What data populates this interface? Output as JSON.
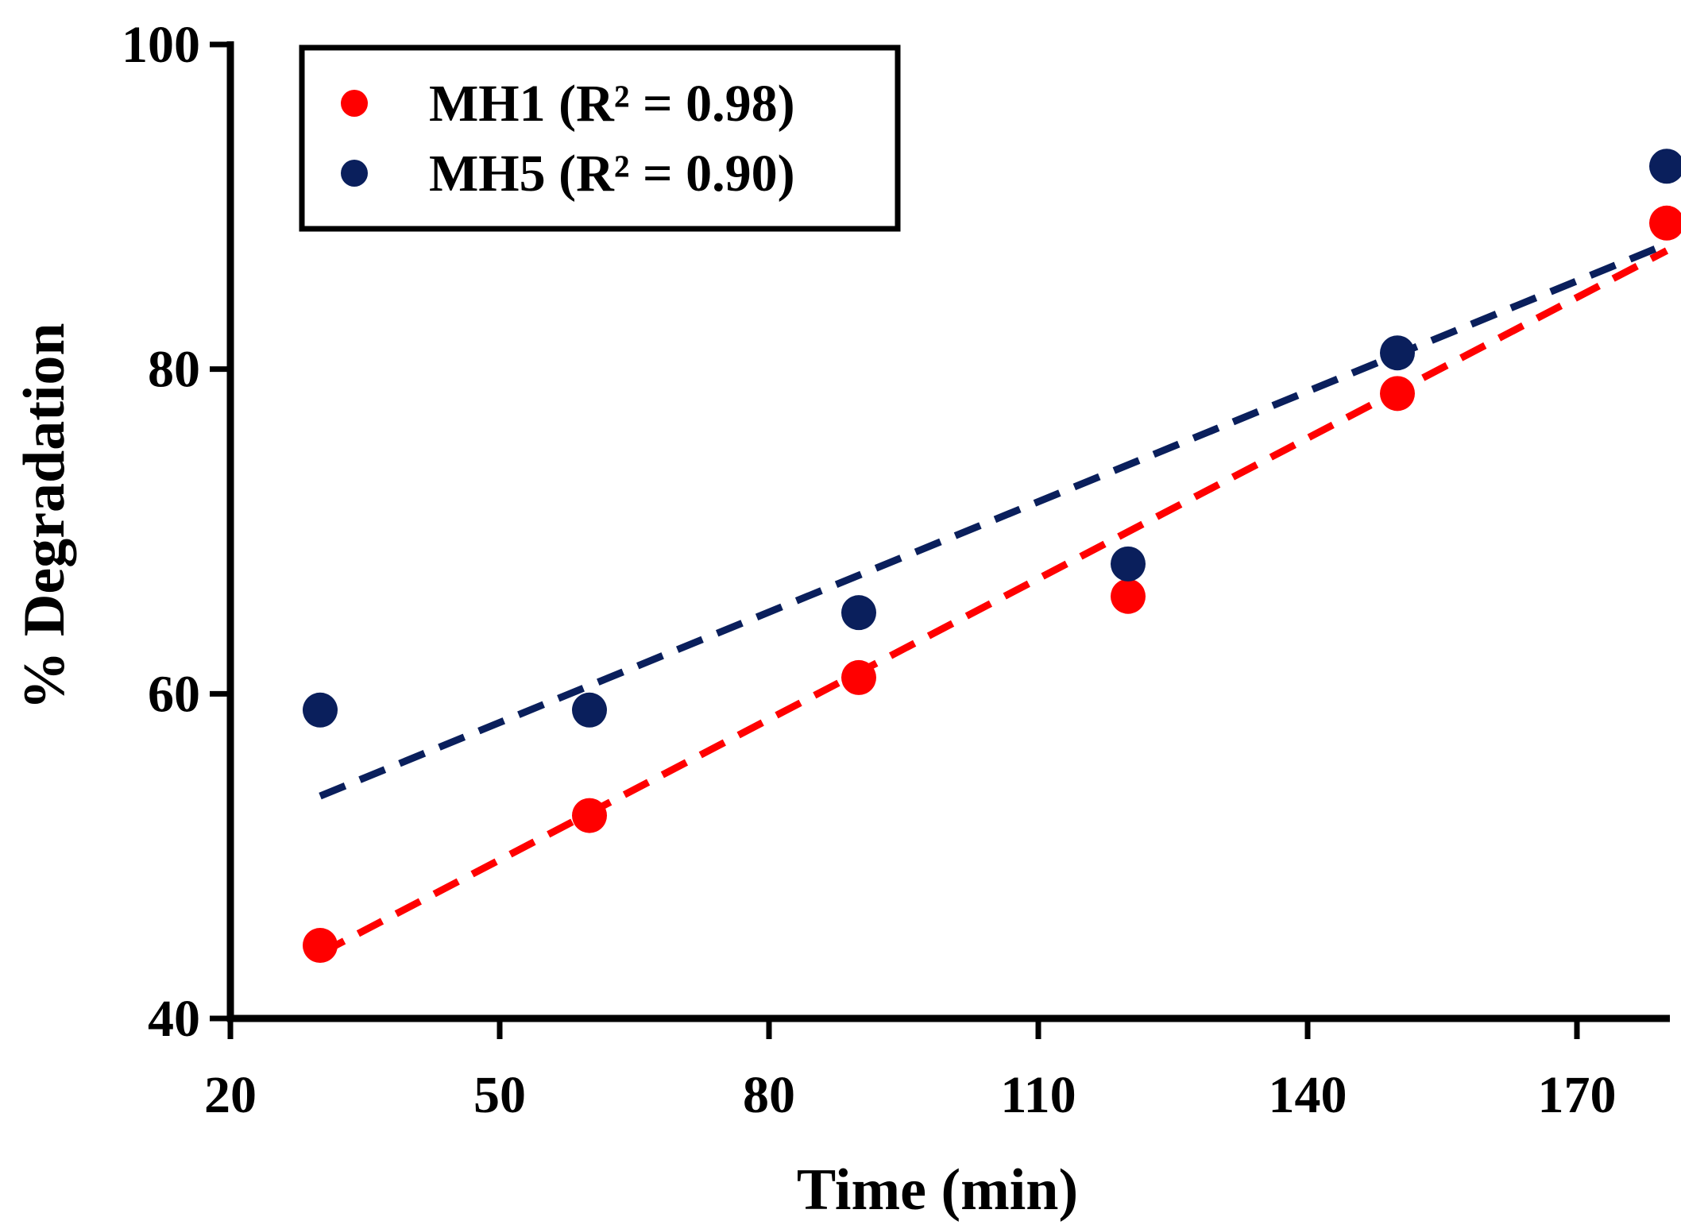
{
  "chart_data": {
    "type": "scatter",
    "title": "",
    "xlabel": "Time (min)",
    "ylabel": "% Degradation",
    "xlim": [
      20,
      180
    ],
    "ylim": [
      40,
      100
    ],
    "x_ticks": [
      20,
      50,
      80,
      110,
      140,
      170
    ],
    "y_ticks": [
      40,
      60,
      80,
      100
    ],
    "legend_position": "top-left",
    "series": [
      {
        "name": "MH1 (R² = 0.98)",
        "color": "#ff0000",
        "x": [
          30,
          60,
          90,
          120,
          150,
          180
        ],
        "y": [
          44.5,
          52.5,
          61,
          66,
          78.5,
          89
        ],
        "trendline": {
          "x": [
            30,
            180
          ],
          "y": [
            44,
            87.3
          ],
          "style": "dashed"
        }
      },
      {
        "name": "MH5 (R² = 0.90)",
        "color": "#0a1f5c",
        "x": [
          30,
          60,
          90,
          120,
          150,
          180
        ],
        "y": [
          59,
          59,
          65,
          68,
          81,
          92.5
        ],
        "trendline": {
          "x": [
            30,
            180
          ],
          "y": [
            53.7,
            87.7
          ],
          "style": "dashed"
        }
      }
    ]
  }
}
